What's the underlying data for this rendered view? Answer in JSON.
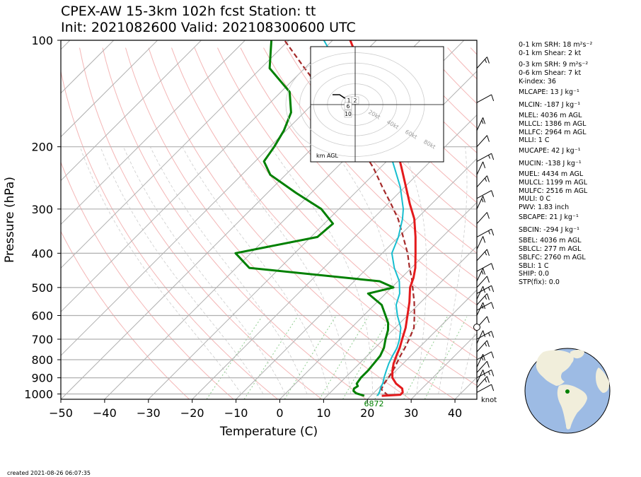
{
  "title_line1": "CPEX-AW 15-3km  102h fcst  Station: tt",
  "title_line2": "Init: 2021082600  Valid: 202108300600 UTC",
  "created": "created 2021-08-26 06:07:35",
  "indices": [
    {
      "text": "0-1 km SRH: 18 m²s⁻²"
    },
    {
      "text": "0-1 km Shear: 2 kt"
    },
    {
      "text": "0-3 km SRH: 9 m²s⁻²"
    },
    {
      "text": "0-6 km Shear: 7 kt"
    },
    {
      "text": "K-index: 36"
    },
    {
      "text": "MLCAPE: 13 J kg⁻¹"
    },
    {
      "text": "MLCIN: -187 J kg⁻¹"
    },
    {
      "text": "MLEL: 4036 m AGL"
    },
    {
      "text": "MLLCL: 1386 m AGL"
    },
    {
      "text": "MLLFC: 2964 m AGL"
    },
    {
      "text": "MLLI: 1 C"
    },
    {
      "text": "MUCAPE: 42 J kg⁻¹"
    },
    {
      "text": "MUCIN: -138 J kg⁻¹"
    },
    {
      "text": "MUEL: 4434 m AGL"
    },
    {
      "text": "MULCL: 1199 m AGL"
    },
    {
      "text": "MULFC: 2516 m AGL"
    },
    {
      "text": "MULI: 0 C"
    },
    {
      "text": "PWV: 1.83 inch"
    },
    {
      "text": "SBCAPE: 21 J kg⁻¹"
    },
    {
      "text": "SBCIN: -294 J kg⁻¹"
    },
    {
      "text": "SBEL: 4036 m AGL"
    },
    {
      "text": "SBLCL: 277 m AGL"
    },
    {
      "text": "SBLFC: 2760 m AGL"
    },
    {
      "text": "SBLI: 1 C"
    },
    {
      "text": "SHIP: 0.0"
    },
    {
      "text": "STP(fix): 0.0"
    }
  ],
  "colors": {
    "temperature": "#e41a1c",
    "dewpoint": "#008000",
    "wetbulb": "#17becf",
    "parcel": "#a52a2a",
    "isobar": "#b0b0b0",
    "dry_adiabat": "#f4b6b6",
    "mixing_ratio": "#8fce8f",
    "globe_ocean": "#9dbbe4",
    "globe_land": "#f1eedb"
  },
  "hodograph": {
    "label": "km AGL",
    "height_labels": [
      "1",
      "2",
      "6",
      "10"
    ],
    "ring_labels": [
      "20kt",
      "40kt",
      "60kt",
      "80kt"
    ]
  },
  "chart_data": {
    "type": "line",
    "subtype": "skew-T log-P",
    "xlabel": "Temperature (C)",
    "ylabel": "Pressure (hPa)",
    "xlim": [
      -50,
      45
    ],
    "ylim": [
      1035,
      100
    ],
    "yscale": "log",
    "x_ticks": [
      -50,
      -40,
      -30,
      -20,
      -10,
      0,
      10,
      20,
      30,
      40
    ],
    "y_ticks": [
      100,
      200,
      300,
      400,
      500,
      600,
      700,
      800,
      900,
      1000
    ],
    "grid": true,
    "annotations": [
      {
        "text": "6872",
        "x": 21.5,
        "y": 1015
      },
      {
        "text": "knot"
      }
    ],
    "series": [
      {
        "key": "temperature",
        "p": [
          1012,
          1005,
          990,
          965,
          935,
          900,
          860,
          820,
          780,
          740,
          700,
          650,
          600,
          550,
          500,
          470,
          440,
          400,
          360,
          320,
          290,
          260,
          230,
          200,
          180,
          160,
          140,
          120,
          100
        ],
        "t": [
          22.5,
          26.5,
          26.5,
          25.5,
          23.0,
          20.8,
          19.2,
          17.8,
          16.7,
          15.6,
          14.2,
          12.4,
          10.0,
          7.4,
          4.2,
          2.8,
          0.9,
          -2.4,
          -6.1,
          -10.5,
          -15.0,
          -19.7,
          -25.0,
          -31.1,
          -36.0,
          -42.0,
          -49.0,
          -57.0,
          -66.0
        ]
      },
      {
        "key": "wetbulb",
        "p": [
          1012,
          990,
          960,
          930,
          900,
          860,
          820,
          780,
          740,
          700,
          650,
          600,
          560,
          520,
          480,
          440,
          400,
          360,
          320,
          300,
          260,
          230,
          200,
          180,
          160,
          140,
          120,
          100
        ],
        "t": [
          21.5,
          21.2,
          20.4,
          19.8,
          18.9,
          17.8,
          16.7,
          15.8,
          15.0,
          13.6,
          11.3,
          7.7,
          5.0,
          3.2,
          0.3,
          -3.9,
          -7.8,
          -10.0,
          -13.2,
          -15.3,
          -21.0,
          -26.6,
          -33.0,
          -38.5,
          -45.0,
          -53.0,
          -62.0,
          -72.0
        ]
      },
      {
        "key": "dewpoint",
        "p": [
          1012,
          995,
          980,
          965,
          950,
          935,
          900,
          860,
          820,
          780,
          740,
          700,
          660,
          630,
          600,
          560,
          520,
          500,
          480,
          440,
          400,
          360,
          330,
          300,
          270,
          240,
          220,
          200,
          180,
          160,
          140,
          120,
          100
        ],
        "t": [
          18.5,
          16.0,
          14.9,
          14.5,
          14.8,
          14.0,
          13.6,
          13.6,
          13.3,
          13.0,
          12.0,
          10.4,
          8.9,
          7.3,
          5.0,
          1.7,
          -4.0,
          0.4,
          -4.2,
          -37.0,
          -43.5,
          -28.5,
          -28.0,
          -34.0,
          -43.5,
          -53.5,
          -58.0,
          -59.0,
          -60.5,
          -63.0,
          -68.0,
          -78.0,
          -84.0
        ]
      },
      {
        "key": "parcel",
        "p": [
          1012,
          970,
          930,
          900,
          860,
          820,
          780,
          740,
          700,
          650,
          600,
          550,
          500,
          470,
          440,
          400,
          360,
          320,
          290,
          260,
          230,
          200,
          180,
          160,
          140,
          120,
          100
        ],
        "t": [
          24.0,
          20.9,
          20.2,
          19.9,
          19.3,
          18.5,
          17.6,
          16.8,
          15.8,
          14.3,
          11.6,
          8.5,
          4.8,
          2.4,
          -0.4,
          -4.2,
          -8.9,
          -14.2,
          -19.3,
          -25.1,
          -31.4,
          -39.3,
          -45.5,
          -52.5,
          -60.5,
          -70.0,
          -81.0
        ]
      }
    ]
  }
}
